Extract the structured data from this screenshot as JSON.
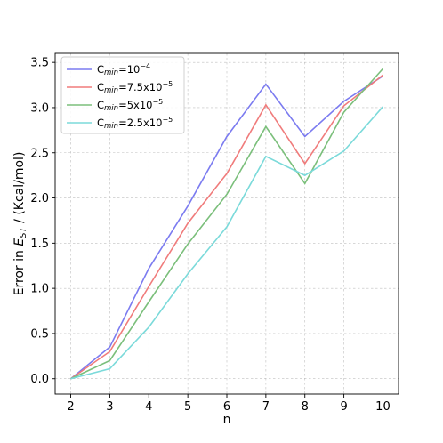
{
  "chart_data": {
    "type": "line",
    "xlabel": "n",
    "ylabel": "Error in Eₛₜ / (Kcal/mol)",
    "ylabel_parts": {
      "prefix": "Error in ",
      "main": "E",
      "sub": "ST",
      "suffix": " / (Kcal/mol)"
    },
    "x": [
      2,
      3,
      4,
      5,
      6,
      7,
      8,
      9,
      10
    ],
    "xlim": [
      1.6,
      10.4
    ],
    "ylim": [
      -0.17,
      3.6
    ],
    "xticks": [
      "2",
      "3",
      "4",
      "5",
      "6",
      "7",
      "8",
      "9",
      "10"
    ],
    "yticks": [
      "0.0",
      "0.5",
      "1.0",
      "1.5",
      "2.0",
      "2.5",
      "3.0",
      "3.5"
    ],
    "ytick_values": [
      0.0,
      0.5,
      1.0,
      1.5,
      2.0,
      2.5,
      3.0,
      3.5
    ],
    "grid": true,
    "legend_position": "top-left",
    "series": [
      {
        "name": "C_min=10^-4",
        "label_base": "C",
        "label_sub": "min",
        "label_mid": "=10",
        "label_sup": "−4",
        "color": "#7b7bf0",
        "values": [
          0.0,
          0.35,
          1.22,
          1.91,
          2.68,
          3.26,
          2.68,
          3.07,
          3.35
        ]
      },
      {
        "name": "C_min=7.5x10^-5",
        "label_base": "C",
        "label_sub": "min",
        "label_mid": "=7.5x10",
        "label_sup": "−5",
        "color": "#f07b7b",
        "values": [
          0.0,
          0.3,
          1.02,
          1.72,
          2.27,
          3.03,
          2.38,
          3.02,
          3.36
        ]
      },
      {
        "name": "C_min=5x10^-5",
        "label_base": "C",
        "label_sub": "min",
        "label_mid": "=5x10",
        "label_sup": "−5",
        "color": "#7bbf7b",
        "values": [
          0.0,
          0.2,
          0.85,
          1.49,
          2.04,
          2.79,
          2.16,
          2.95,
          3.43
        ]
      },
      {
        "name": "C_min=2.5x10^-5",
        "label_base": "C",
        "label_sub": "min",
        "label_mid": "=2.5x10",
        "label_sup": "−5",
        "color": "#7bdada",
        "values": [
          0.0,
          0.11,
          0.57,
          1.16,
          1.68,
          2.46,
          2.25,
          2.52,
          3.01
        ]
      }
    ]
  }
}
